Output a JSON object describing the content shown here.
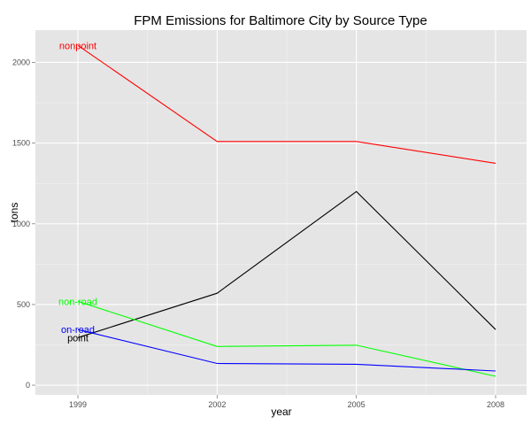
{
  "chart_data": {
    "type": "line",
    "title": "FPM Emissions for Baltimore City by Source Type",
    "xlabel": "year",
    "ylabel": "tons",
    "x": [
      1999,
      2002,
      2005,
      2008
    ],
    "x_tick_labels": [
      "1999",
      "2002",
      "2005",
      "2008"
    ],
    "y_ticks": [
      0,
      500,
      1000,
      1500,
      2000
    ],
    "y_tick_labels": [
      "0",
      "500",
      "1000",
      "1500",
      "2000"
    ],
    "ylim": [
      -60,
      2200
    ],
    "grid": true,
    "series": [
      {
        "name": "nonpoint",
        "color": "#ff0000",
        "values": [
          2105,
          1510,
          1510,
          1375
        ]
      },
      {
        "name": "point",
        "color": "#000000",
        "values": [
          295,
          570,
          1200,
          345
        ]
      },
      {
        "name": "non-road",
        "color": "#00ff00",
        "values": [
          520,
          240,
          248,
          55
        ]
      },
      {
        "name": "on-road",
        "color": "#0000ff",
        "values": [
          345,
          135,
          130,
          88
        ]
      }
    ]
  }
}
